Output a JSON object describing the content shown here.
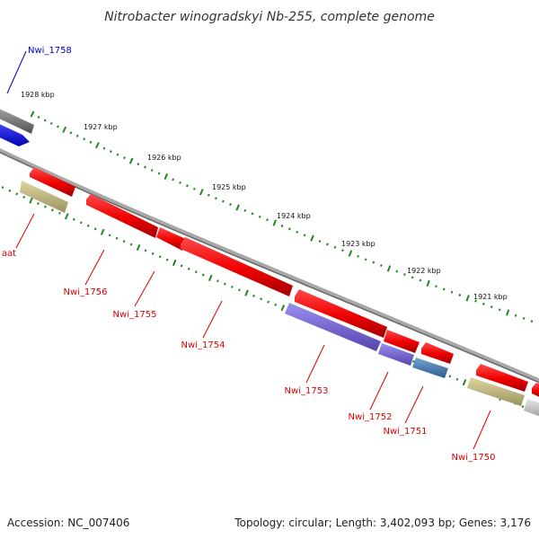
{
  "header": {
    "title": "Nitrobacter winogradskyi Nb-255, complete genome"
  },
  "footer": {
    "accession": "Accession: NC_007406",
    "stats": "Topology: circular; Length: 3,402,093 bp; Genes: 3,176"
  },
  "scale": {
    "ticks": [
      "1928 kbp",
      "1927 kbp",
      "1926 kbp",
      "1925 kbp",
      "1924 kbp",
      "1923 kbp",
      "1922 kbp",
      "1921 kbp"
    ]
  },
  "genes": {
    "nwi_1758": "Nwi_1758",
    "aat": "aat",
    "nwi_1756": "Nwi_1756",
    "nwi_1755": "Nwi_1755",
    "nwi_1754": "Nwi_1754",
    "nwi_1753": "Nwi_1753",
    "nwi_1752": "Nwi_1752",
    "nwi_1751": "Nwi_1751",
    "nwi_1750": "Nwi_1750"
  },
  "colors": {
    "cds": "#ff0000",
    "rna": "#0000ff",
    "pseudo": "#c8c080",
    "purple": "#8070d8",
    "steel": "#4a80b8",
    "backbone": "#808080",
    "ticks": "#228822"
  }
}
